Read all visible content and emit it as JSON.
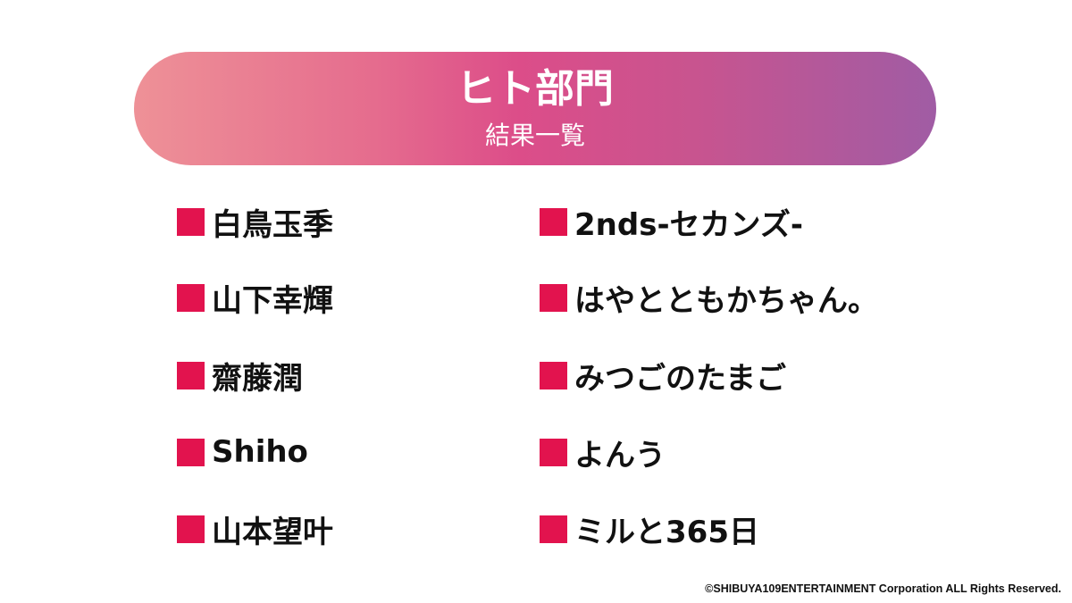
{
  "header": {
    "title": "ヒト部門",
    "subtitle": "結果一覧"
  },
  "accent_color": "#e2134e",
  "left_column": [
    "白鳥玉季",
    "山下幸輝",
    "齋藤潤",
    "Shiho",
    "山本望叶"
  ],
  "right_column": [
    "2nds-セカンズ-",
    "はやとともかちゃん。",
    "みつごのたまご",
    "よんう",
    "ミルと365日"
  ],
  "footer": "©SHIBUYA109ENTERTAINMENT Corporation  ALL Rights Reserved."
}
